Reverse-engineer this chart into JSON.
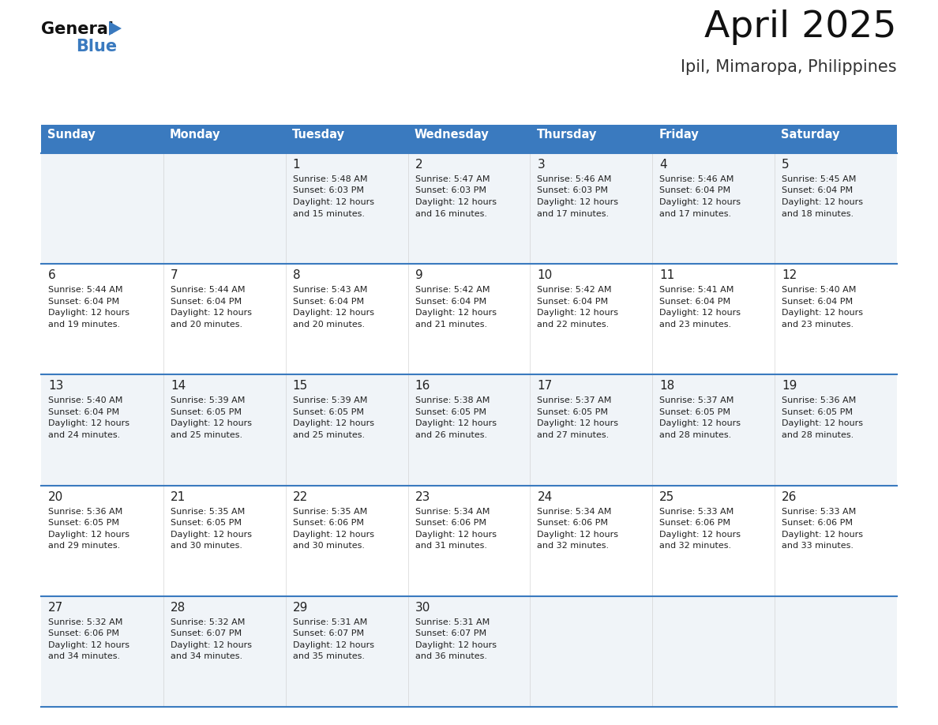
{
  "title": "April 2025",
  "subtitle": "Ipil, Mimaropa, Philippines",
  "header_bg_color": "#3a7abf",
  "header_text_color": "#ffffff",
  "cell_bg_even": "#f0f4f8",
  "cell_bg_odd": "#ffffff",
  "day_names": [
    "Sunday",
    "Monday",
    "Tuesday",
    "Wednesday",
    "Thursday",
    "Friday",
    "Saturday"
  ],
  "text_color": "#222222",
  "line_color": "#3a7abf",
  "logo_general_color": "#111111",
  "logo_blue_color": "#3a7abf",
  "logo_triangle_color": "#3a7abf",
  "title_fontsize": 34,
  "subtitle_fontsize": 15,
  "header_fontsize": 10.5,
  "day_num_fontsize": 11,
  "cell_fontsize": 8.0,
  "calendar_data": [
    [
      {
        "day": "",
        "sunrise": "",
        "sunset": "",
        "daylight_h": "",
        "daylight_m": ""
      },
      {
        "day": "",
        "sunrise": "",
        "sunset": "",
        "daylight_h": "",
        "daylight_m": ""
      },
      {
        "day": "1",
        "sunrise": "5:48 AM",
        "sunset": "6:03 PM",
        "daylight_h": "12 hours",
        "daylight_m": "and 15 minutes."
      },
      {
        "day": "2",
        "sunrise": "5:47 AM",
        "sunset": "6:03 PM",
        "daylight_h": "12 hours",
        "daylight_m": "and 16 minutes."
      },
      {
        "day": "3",
        "sunrise": "5:46 AM",
        "sunset": "6:03 PM",
        "daylight_h": "12 hours",
        "daylight_m": "and 17 minutes."
      },
      {
        "day": "4",
        "sunrise": "5:46 AM",
        "sunset": "6:04 PM",
        "daylight_h": "12 hours",
        "daylight_m": "and 17 minutes."
      },
      {
        "day": "5",
        "sunrise": "5:45 AM",
        "sunset": "6:04 PM",
        "daylight_h": "12 hours",
        "daylight_m": "and 18 minutes."
      }
    ],
    [
      {
        "day": "6",
        "sunrise": "5:44 AM",
        "sunset": "6:04 PM",
        "daylight_h": "12 hours",
        "daylight_m": "and 19 minutes."
      },
      {
        "day": "7",
        "sunrise": "5:44 AM",
        "sunset": "6:04 PM",
        "daylight_h": "12 hours",
        "daylight_m": "and 20 minutes."
      },
      {
        "day": "8",
        "sunrise": "5:43 AM",
        "sunset": "6:04 PM",
        "daylight_h": "12 hours",
        "daylight_m": "and 20 minutes."
      },
      {
        "day": "9",
        "sunrise": "5:42 AM",
        "sunset": "6:04 PM",
        "daylight_h": "12 hours",
        "daylight_m": "and 21 minutes."
      },
      {
        "day": "10",
        "sunrise": "5:42 AM",
        "sunset": "6:04 PM",
        "daylight_h": "12 hours",
        "daylight_m": "and 22 minutes."
      },
      {
        "day": "11",
        "sunrise": "5:41 AM",
        "sunset": "6:04 PM",
        "daylight_h": "12 hours",
        "daylight_m": "and 23 minutes."
      },
      {
        "day": "12",
        "sunrise": "5:40 AM",
        "sunset": "6:04 PM",
        "daylight_h": "12 hours",
        "daylight_m": "and 23 minutes."
      }
    ],
    [
      {
        "day": "13",
        "sunrise": "5:40 AM",
        "sunset": "6:04 PM",
        "daylight_h": "12 hours",
        "daylight_m": "and 24 minutes."
      },
      {
        "day": "14",
        "sunrise": "5:39 AM",
        "sunset": "6:05 PM",
        "daylight_h": "12 hours",
        "daylight_m": "and 25 minutes."
      },
      {
        "day": "15",
        "sunrise": "5:39 AM",
        "sunset": "6:05 PM",
        "daylight_h": "12 hours",
        "daylight_m": "and 25 minutes."
      },
      {
        "day": "16",
        "sunrise": "5:38 AM",
        "sunset": "6:05 PM",
        "daylight_h": "12 hours",
        "daylight_m": "and 26 minutes."
      },
      {
        "day": "17",
        "sunrise": "5:37 AM",
        "sunset": "6:05 PM",
        "daylight_h": "12 hours",
        "daylight_m": "and 27 minutes."
      },
      {
        "day": "18",
        "sunrise": "5:37 AM",
        "sunset": "6:05 PM",
        "daylight_h": "12 hours",
        "daylight_m": "and 28 minutes."
      },
      {
        "day": "19",
        "sunrise": "5:36 AM",
        "sunset": "6:05 PM",
        "daylight_h": "12 hours",
        "daylight_m": "and 28 minutes."
      }
    ],
    [
      {
        "day": "20",
        "sunrise": "5:36 AM",
        "sunset": "6:05 PM",
        "daylight_h": "12 hours",
        "daylight_m": "and 29 minutes."
      },
      {
        "day": "21",
        "sunrise": "5:35 AM",
        "sunset": "6:05 PM",
        "daylight_h": "12 hours",
        "daylight_m": "and 30 minutes."
      },
      {
        "day": "22",
        "sunrise": "5:35 AM",
        "sunset": "6:06 PM",
        "daylight_h": "12 hours",
        "daylight_m": "and 30 minutes."
      },
      {
        "day": "23",
        "sunrise": "5:34 AM",
        "sunset": "6:06 PM",
        "daylight_h": "12 hours",
        "daylight_m": "and 31 minutes."
      },
      {
        "day": "24",
        "sunrise": "5:34 AM",
        "sunset": "6:06 PM",
        "daylight_h": "12 hours",
        "daylight_m": "and 32 minutes."
      },
      {
        "day": "25",
        "sunrise": "5:33 AM",
        "sunset": "6:06 PM",
        "daylight_h": "12 hours",
        "daylight_m": "and 32 minutes."
      },
      {
        "day": "26",
        "sunrise": "5:33 AM",
        "sunset": "6:06 PM",
        "daylight_h": "12 hours",
        "daylight_m": "and 33 minutes."
      }
    ],
    [
      {
        "day": "27",
        "sunrise": "5:32 AM",
        "sunset": "6:06 PM",
        "daylight_h": "12 hours",
        "daylight_m": "and 34 minutes."
      },
      {
        "day": "28",
        "sunrise": "5:32 AM",
        "sunset": "6:07 PM",
        "daylight_h": "12 hours",
        "daylight_m": "and 34 minutes."
      },
      {
        "day": "29",
        "sunrise": "5:31 AM",
        "sunset": "6:07 PM",
        "daylight_h": "12 hours",
        "daylight_m": "and 35 minutes."
      },
      {
        "day": "30",
        "sunrise": "5:31 AM",
        "sunset": "6:07 PM",
        "daylight_h": "12 hours",
        "daylight_m": "and 36 minutes."
      },
      {
        "day": "",
        "sunrise": "",
        "sunset": "",
        "daylight_h": "",
        "daylight_m": ""
      },
      {
        "day": "",
        "sunrise": "",
        "sunset": "",
        "daylight_h": "",
        "daylight_m": ""
      },
      {
        "day": "",
        "sunrise": "",
        "sunset": "",
        "daylight_h": "",
        "daylight_m": ""
      }
    ]
  ]
}
